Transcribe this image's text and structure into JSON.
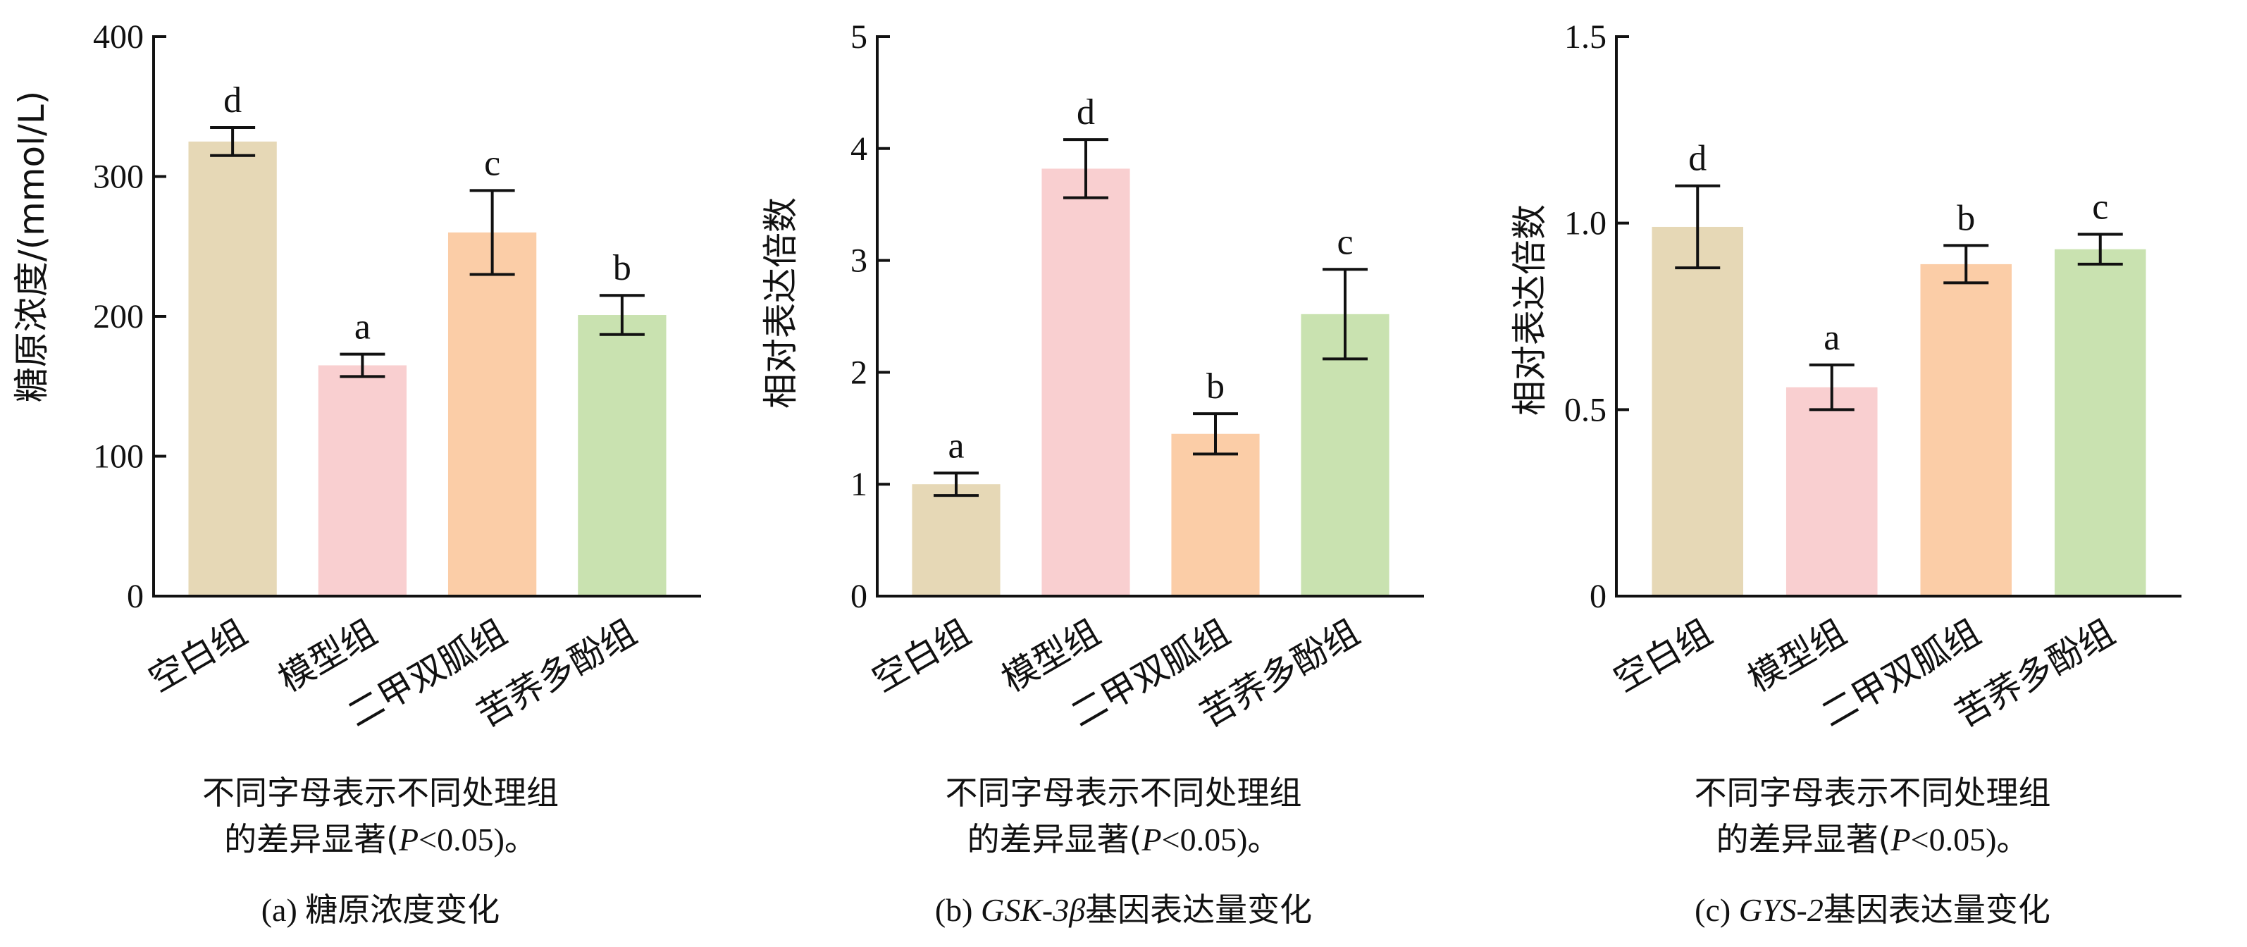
{
  "chart_data": [
    {
      "type": "bar",
      "ylabel": "糖原浓度/(mmol/L)",
      "ylim": [
        0,
        400
      ],
      "yticks": [
        "0",
        "100",
        "200",
        "300",
        "400"
      ],
      "categories": [
        "空白组",
        "模型组",
        "二甲双胍组",
        "苦荞多酚组"
      ],
      "values": [
        325,
        165,
        260,
        201
      ],
      "errors": [
        10,
        8,
        30,
        14
      ],
      "significance": [
        "d",
        "a",
        "c",
        "b"
      ],
      "colors": [
        "#e6d8b6",
        "#f9cfd0",
        "#fbcda7",
        "#c9e2b0"
      ],
      "note_line1": "不同字母表示不同处理组",
      "note_line2_a": "的差异显著(",
      "note_line2_p": "P",
      "note_line2_b": "<0.05)。",
      "caption_prefix": "(a) ",
      "caption_gene": "",
      "caption_rest": "糖原浓度变化"
    },
    {
      "type": "bar",
      "ylabel": "相对表达倍数",
      "ylim": [
        0,
        5
      ],
      "yticks": [
        "0",
        "1",
        "2",
        "3",
        "4",
        "5"
      ],
      "categories": [
        "空白组",
        "模型组",
        "二甲双胍组",
        "苦荞多酚组"
      ],
      "values": [
        1.0,
        3.82,
        1.45,
        2.52
      ],
      "errors": [
        0.1,
        0.26,
        0.18,
        0.4
      ],
      "significance": [
        "a",
        "d",
        "b",
        "c"
      ],
      "colors": [
        "#e6d8b6",
        "#f9cfd0",
        "#fbcda7",
        "#c9e2b0"
      ],
      "note_line1": "不同字母表示不同处理组",
      "note_line2_a": "的差异显著(",
      "note_line2_p": "P",
      "note_line2_b": "<0.05)。",
      "caption_prefix": "(b) ",
      "caption_gene": "GSK-3β",
      "caption_rest": "基因表达量变化"
    },
    {
      "type": "bar",
      "ylabel": "相对表达倍数",
      "ylim": [
        0,
        1.5
      ],
      "yticks": [
        "0",
        "0.5",
        "1.0",
        "1.5"
      ],
      "categories": [
        "空白组",
        "模型组",
        "二甲双胍组",
        "苦荞多酚组"
      ],
      "values": [
        0.99,
        0.56,
        0.89,
        0.93
      ],
      "errors": [
        0.11,
        0.06,
        0.05,
        0.04
      ],
      "significance": [
        "d",
        "a",
        "b",
        "c"
      ],
      "colors": [
        "#e6d8b6",
        "#f9cfd0",
        "#fbcda7",
        "#c9e2b0"
      ],
      "note_line1": "不同字母表示不同处理组",
      "note_line2_a": "的差异显著(",
      "note_line2_p": "P",
      "note_line2_b": "<0.05)。",
      "caption_prefix": "(c) ",
      "caption_gene": "GYS-2",
      "caption_rest": "基因表达量变化"
    }
  ]
}
